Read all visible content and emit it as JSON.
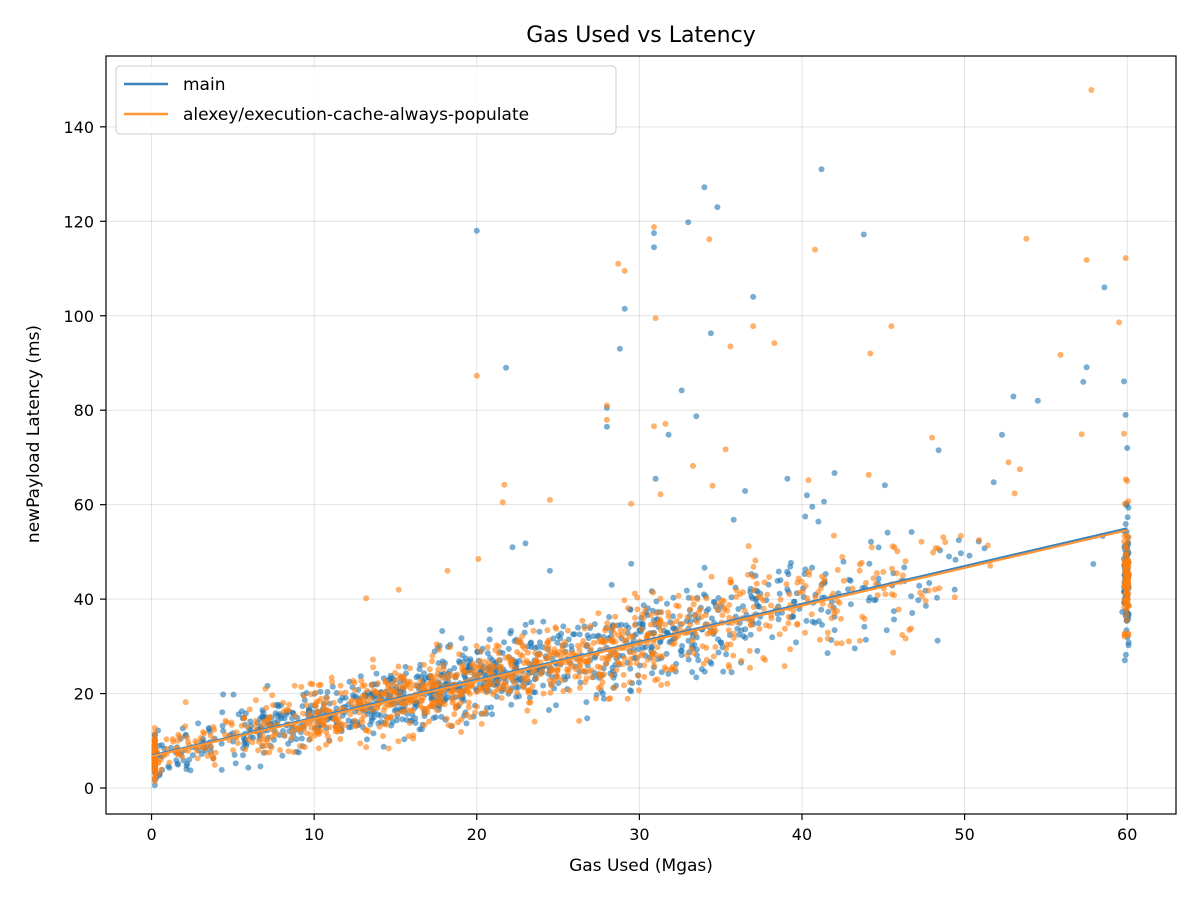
{
  "chart_data": {
    "type": "scatter",
    "title": "Gas Used vs Latency",
    "xlabel": "Gas Used (Mgas)",
    "ylabel": "newPayload Latency (ms)",
    "xlim": [
      -2.8,
      63.0
    ],
    "ylim": [
      -5.5,
      155.0
    ],
    "xticks": [
      0,
      10,
      20,
      30,
      40,
      50,
      60
    ],
    "yticks": [
      0,
      20,
      40,
      60,
      80,
      100,
      120,
      140
    ],
    "grid": true,
    "legend_position": "top-left",
    "series": [
      {
        "name": "main",
        "color": "#1f77b4",
        "line_color": "#3d84bd",
        "trend": {
          "x": [
            0,
            60
          ],
          "y": [
            6.9,
            55.0
          ]
        },
        "points": [
          [
            20.0,
            118.0
          ],
          [
            21.8,
            89.0
          ],
          [
            28.0,
            76.5
          ],
          [
            28.0,
            80.5
          ],
          [
            28.8,
            93.0
          ],
          [
            29.1,
            101.5
          ],
          [
            30.9,
            114.5
          ],
          [
            30.9,
            117.5
          ],
          [
            31.0,
            65.5
          ],
          [
            31.8,
            74.8
          ],
          [
            32.6,
            84.2
          ],
          [
            33.0,
            119.8
          ],
          [
            33.5,
            78.7
          ],
          [
            34.0,
            127.2
          ],
          [
            34.4,
            96.3
          ],
          [
            34.8,
            123.0
          ],
          [
            35.8,
            56.8
          ],
          [
            36.5,
            62.9
          ],
          [
            37.0,
            104.0
          ],
          [
            39.1,
            65.5
          ],
          [
            40.2,
            57.5
          ],
          [
            40.3,
            62.0
          ],
          [
            41.2,
            131.0
          ],
          [
            42.0,
            66.7
          ],
          [
            43.8,
            117.2
          ],
          [
            45.1,
            64.1
          ],
          [
            48.4,
            71.5
          ],
          [
            52.3,
            74.8
          ],
          [
            53.0,
            82.9
          ],
          [
            54.5,
            82.0
          ],
          [
            57.3,
            86.0
          ],
          [
            57.5,
            89.1
          ],
          [
            58.6,
            106.0
          ],
          [
            59.8,
            86.1
          ],
          [
            59.9,
            79.0
          ],
          [
            60.0,
            72.0
          ],
          [
            22.2,
            51.0
          ],
          [
            23.0,
            51.8
          ],
          [
            24.5,
            46.0
          ],
          [
            28.3,
            43.0
          ],
          [
            29.5,
            47.5
          ],
          [
            59.7,
            37.3
          ],
          [
            4.4,
            19.8
          ],
          [
            0.3,
            2.2
          ],
          [
            0.5,
            3.0
          ],
          [
            1.1,
            4.3
          ],
          [
            2.2,
            5.1
          ],
          [
            3.1,
            7.2
          ]
        ]
      },
      {
        "name": "alexey/execution-cache-always-populate",
        "color": "#ff7f0e",
        "line_color": "#ff9535",
        "trend": {
          "x": [
            0,
            60
          ],
          "y": [
            6.7,
            54.6
          ]
        },
        "points": [
          [
            57.8,
            147.8
          ],
          [
            28.7,
            111.0
          ],
          [
            29.1,
            109.5
          ],
          [
            30.9,
            118.8
          ],
          [
            34.3,
            116.2
          ],
          [
            40.8,
            114.0
          ],
          [
            53.8,
            116.3
          ],
          [
            57.5,
            111.8
          ],
          [
            59.9,
            112.2
          ],
          [
            31.0,
            99.5
          ],
          [
            35.6,
            93.5
          ],
          [
            37.0,
            97.8
          ],
          [
            38.3,
            94.2
          ],
          [
            44.2,
            92.0
          ],
          [
            45.5,
            97.8
          ],
          [
            55.9,
            91.7
          ],
          [
            59.5,
            98.6
          ],
          [
            20.0,
            87.3
          ],
          [
            28.0,
            81.0
          ],
          [
            28.0,
            78.0
          ],
          [
            33.3,
            68.2
          ],
          [
            34.5,
            64.0
          ],
          [
            35.3,
            71.7
          ],
          [
            40.4,
            65.2
          ],
          [
            44.1,
            66.3
          ],
          [
            48.0,
            74.2
          ],
          [
            52.7,
            69.0
          ],
          [
            53.4,
            67.5
          ],
          [
            57.2,
            74.9
          ],
          [
            59.8,
            75.0
          ],
          [
            21.7,
            64.2
          ],
          [
            21.6,
            60.5
          ],
          [
            24.5,
            61.0
          ],
          [
            29.5,
            60.2
          ],
          [
            30.9,
            76.6
          ],
          [
            31.3,
            62.2
          ],
          [
            31.6,
            77.1
          ],
          [
            18.2,
            46.0
          ],
          [
            20.1,
            48.5
          ],
          [
            15.2,
            42.0
          ],
          [
            13.2,
            40.2
          ],
          [
            2.1,
            18.2
          ],
          [
            0.4,
            3.0
          ],
          [
            1.1,
            5.4
          ],
          [
            2.3,
            9.1
          ],
          [
            3.8,
            6.2
          ],
          [
            7.0,
            21.0
          ],
          [
            60.0,
            65.0
          ]
        ]
      }
    ]
  }
}
